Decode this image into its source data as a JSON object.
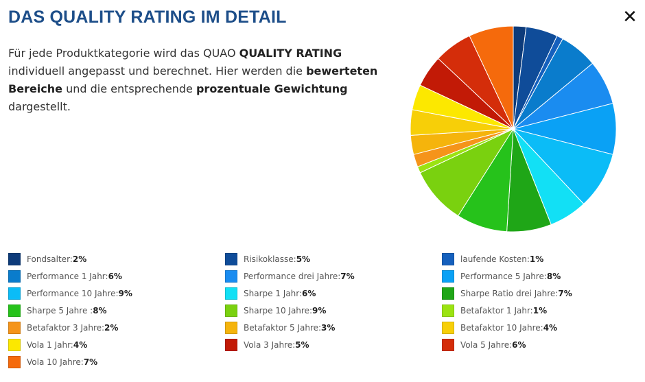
{
  "header": {
    "title": "DAS QUALITY RATING IM DETAIL",
    "close_glyph": "✕",
    "close_icon": "close-icon"
  },
  "intro": {
    "p1": "Für jede Produktkategorie wird das QUAO ",
    "b1": "QUALITY RATING",
    "p2": " individuell angepasst und berechnet. Hier werden die ",
    "b2": "bewerteten Bereiche",
    "p3": " und die entsprechende ",
    "b3": "prozentuale Gewichtung",
    "p4": " dargestellt."
  },
  "chart_data": {
    "type": "pie",
    "start_angle": "12 o'clock",
    "direction": "clockwise",
    "slices": [
      {
        "label": "Fondsalter:",
        "pct": "2%",
        "value": 2,
        "color": "#0d3b7a"
      },
      {
        "label": "Risikoklasse:",
        "pct": "5%",
        "value": 5,
        "color": "#0f4c99"
      },
      {
        "label": "laufende Kosten:",
        "pct": "1%",
        "value": 1,
        "color": "#1560bd"
      },
      {
        "label": "Performance 1 Jahr:",
        "pct": "6%",
        "value": 6,
        "color": "#0a7ccc"
      },
      {
        "label": "Performance drei Jahre:",
        "pct": "7%",
        "value": 7,
        "color": "#1a8cf0"
      },
      {
        "label": "Performance 5 Jahre:",
        "pct": "8%",
        "value": 8,
        "color": "#0aa1f5"
      },
      {
        "label": "Performance 10 Jahre:",
        "pct": "9%",
        "value": 9,
        "color": "#0bbcf7"
      },
      {
        "label": "Sharpe 1 Jahr:",
        "pct": "6%",
        "value": 6,
        "color": "#12e0f5"
      },
      {
        "label": "Sharpe Ratio drei Jahre:",
        "pct": "7%",
        "value": 7,
        "color": "#1fa617"
      },
      {
        "label": "Sharpe 5 Jahre :",
        "pct": "8%",
        "value": 8,
        "color": "#26c21b"
      },
      {
        "label": "Sharpe 10 Jahre:",
        "pct": "9%",
        "value": 9,
        "color": "#7ad10f"
      },
      {
        "label": "Betafaktor 1 Jahr:",
        "pct": "1%",
        "value": 1,
        "color": "#9be312"
      },
      {
        "label": "Betafaktor 3 Jahre:",
        "pct": "2%",
        "value": 2,
        "color": "#f5941a"
      },
      {
        "label": "Betafaktor 5 Jahre:",
        "pct": "3%",
        "value": 3,
        "color": "#f5b40c"
      },
      {
        "label": "Betafaktor 10 Jahre:",
        "pct": "4%",
        "value": 4,
        "color": "#f7cf08"
      },
      {
        "label": "Vola 1 Jahr:",
        "pct": "4%",
        "value": 4,
        "color": "#fce800"
      },
      {
        "label": "Vola 3 Jahre:",
        "pct": "5%",
        "value": 5,
        "color": "#c21a06"
      },
      {
        "label": "Vola 5 Jahre:",
        "pct": "6%",
        "value": 6,
        "color": "#d42d0a"
      },
      {
        "label": "Vola 10 Jahre:",
        "pct": "7%",
        "value": 7,
        "color": "#f56a0c"
      }
    ],
    "legend_placement": "bottom, three columns"
  }
}
